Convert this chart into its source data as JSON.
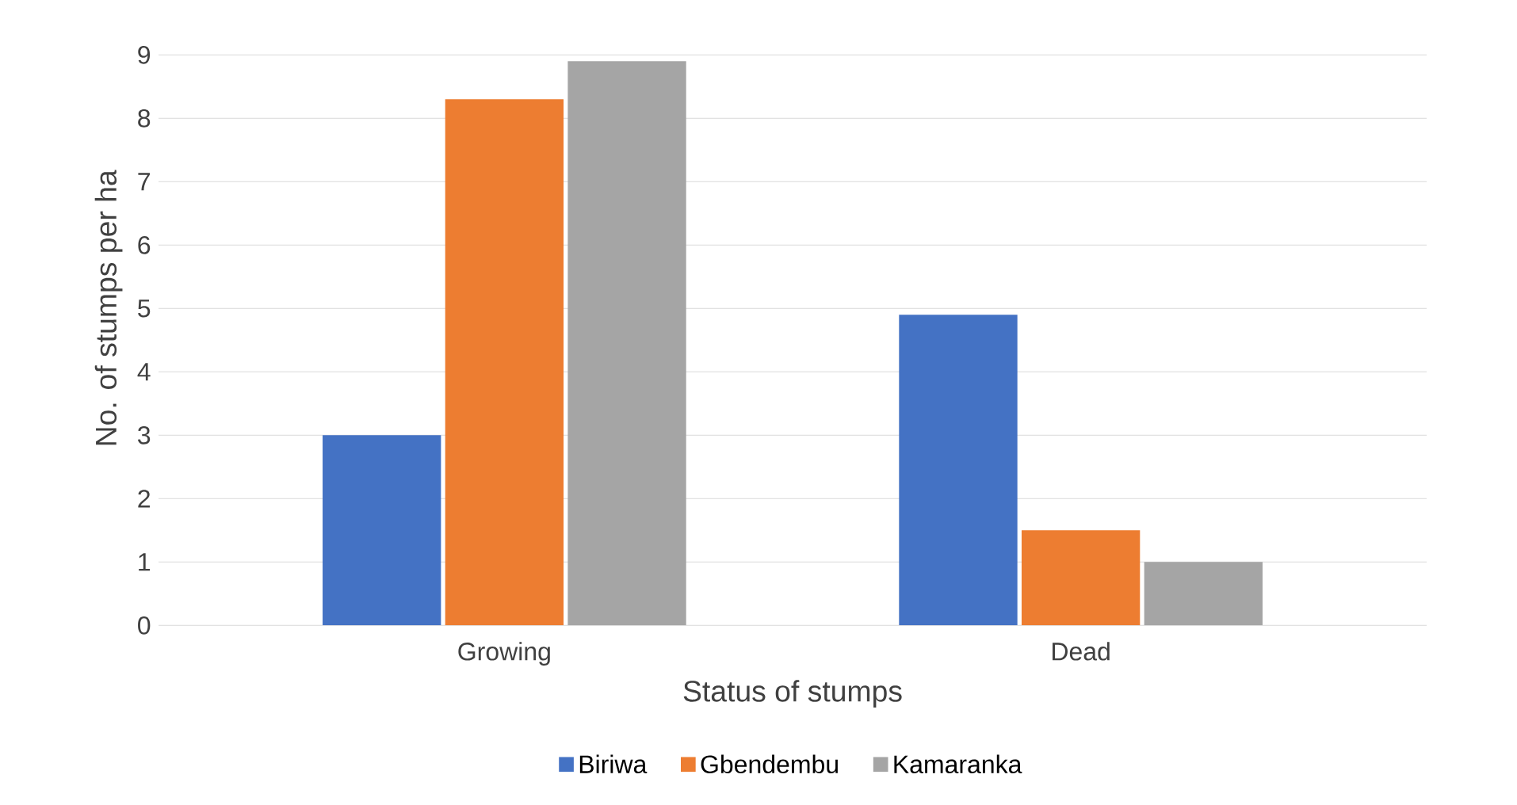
{
  "chart_data": {
    "type": "bar",
    "xlabel": "Status of stumps",
    "ylabel": "No. of stumps per ha",
    "categories": [
      "Growing",
      "Dead"
    ],
    "series": [
      {
        "name": "Biriwa",
        "color": "#4472c4",
        "values": [
          3,
          4.9
        ]
      },
      {
        "name": "Gbendembu",
        "color": "#ed7d31",
        "values": [
          8.3,
          1.5
        ]
      },
      {
        "name": "Kamaranka",
        "color": "#a5a5a5",
        "values": [
          8.9,
          1
        ]
      }
    ],
    "ylim": [
      0,
      10
    ],
    "yticks": [
      0,
      1,
      2,
      3,
      4,
      5,
      6,
      7,
      8,
      9,
      {
        "value": 10,
        "label": null
      }
    ],
    "grid": "y",
    "legend": "bottom"
  }
}
